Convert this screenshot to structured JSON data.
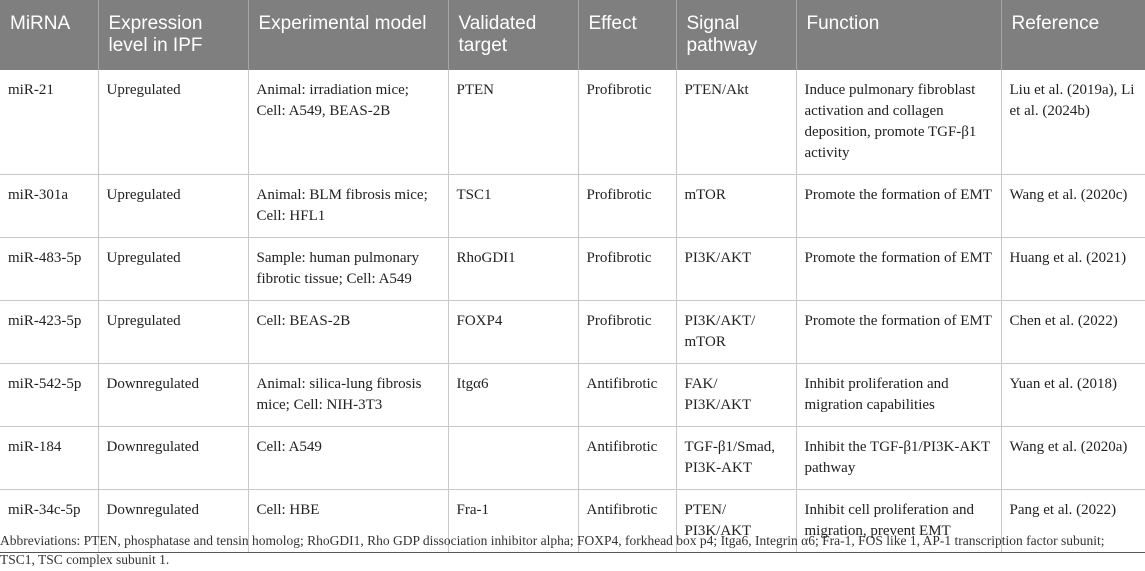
{
  "table": {
    "headers": [
      "MiRNA",
      "Expression level in IPF",
      "Experimental model",
      "Validated target",
      "Effect",
      "Signal pathway",
      "Function",
      "Reference"
    ],
    "rows": [
      [
        "miR-21",
        "Upregulated",
        "Animal: irradiation mice; Cell: A549, BEAS-2B",
        "PTEN",
        "Profibrotic",
        "PTEN/Akt",
        "Induce pulmonary fibroblast activation and collagen deposition, promote TGF-β1 activity",
        "Liu et al. (2019a), Li et al. (2024b)"
      ],
      [
        "miR-301a",
        "Upregulated",
        "Animal: BLM fibrosis mice; Cell: HFL1",
        "TSC1",
        "Profibrotic",
        "mTOR",
        "Promote the formation of EMT",
        "Wang et al. (2020c)"
      ],
      [
        "miR-483-5p",
        "Upregulated",
        "Sample: human pulmonary fibrotic tissue; Cell: A549",
        "RhoGDI1",
        "Profibrotic",
        "PI3K/AKT",
        "Promote the formation of EMT",
        "Huang et al. (2021)"
      ],
      [
        "miR-423-5p",
        "Upregulated",
        "Cell: BEAS-2B",
        "FOXP4",
        "Profibrotic",
        "PI3K/AKT/ mTOR",
        "Promote the formation of EMT",
        "Chen et al. (2022)"
      ],
      [
        "miR-542-5p",
        "Downregulated",
        "Animal: silica-lung fibrosis mice; Cell: NIH-3T3",
        "Itgα6",
        "Antifibrotic",
        "FAK/ PI3K/AKT",
        "Inhibit proliferation and migration capabilities",
        "Yuan et al. (2018)"
      ],
      [
        "miR-184",
        "Downregulated",
        "Cell: A549",
        "",
        "Antifibrotic",
        "TGF-β1/Smad, PI3K-AKT",
        "Inhibit the TGF-β1/PI3K-AKT pathway",
        "Wang et al. (2020a)"
      ],
      [
        "miR-34c-5p",
        "Downregulated",
        "Cell: HBE",
        "Fra-1",
        "Antifibrotic",
        "PTEN/ PI3K/AKT",
        "Inhibit cell proliferation and migration, prevent EMT",
        "Pang et al. (2022)"
      ]
    ]
  },
  "abbreviations": "Abbreviations: PTEN, phosphatase and tensin homolog; RhoGDI1, Rho GDP dissociation inhibitor alpha; FOXP4, forkhead box p4; Itga6, Integrin α6; Fra-1, FOS like 1, AP-1 transcription factor subunit; TSC1, TSC complex subunit 1.",
  "colors": {
    "header_bg": "#7f7f7f",
    "header_text": "#ffffff",
    "body_text": "#222222",
    "rule": "#c8c8c8"
  }
}
